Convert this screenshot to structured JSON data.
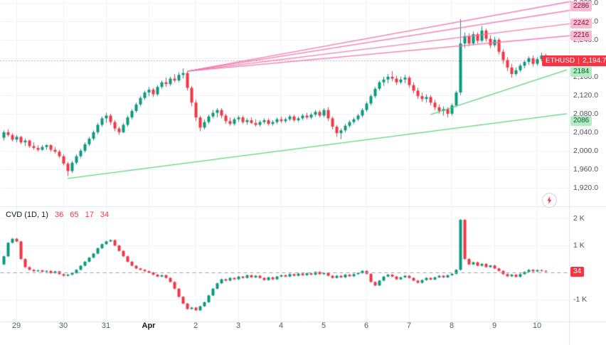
{
  "symbol_badge": {
    "symbol": "ETHUSD",
    "price": "2,194.7"
  },
  "cvd_legend": {
    "title": "CVD (1D, 1)",
    "values": [
      "36",
      "65",
      "17",
      "34"
    ]
  },
  "colors": {
    "up": "#089981",
    "down": "#f23645",
    "grid": "#eef1f6",
    "separator": "#e0e3eb",
    "pink_line": "#f272a8",
    "green_line": "#4fd070",
    "axis_text": "#50535e",
    "zero_line": "#9aa0ab",
    "price_line": "#f23645"
  },
  "chart_data": {
    "type": "candlestick",
    "title": "ETHUSD price with CVD (Cumulative Volume Delta) lower pane",
    "x_ticks": [
      {
        "label": "29",
        "i": 3
      },
      {
        "label": "30",
        "i": 14
      },
      {
        "label": "31",
        "i": 24
      },
      {
        "label": "Apr",
        "i": 34,
        "emph": true
      },
      {
        "label": "2",
        "i": 45
      },
      {
        "label": "3",
        "i": 55
      },
      {
        "label": "4",
        "i": 65
      },
      {
        "label": "5",
        "i": 75
      },
      {
        "label": "6",
        "i": 85
      },
      {
        "label": "7",
        "i": 95
      },
      {
        "label": "8",
        "i": 105
      },
      {
        "label": "9",
        "i": 115
      },
      {
        "label": "10",
        "i": 125
      }
    ],
    "price_pane": {
      "ylim": [
        1889,
        2326
      ],
      "grid_step": 40,
      "current_price": 2194.7,
      "y_ticks": [
        {
          "price": 2320,
          "label": "2,320.0"
        },
        {
          "price": 2280,
          "label": "2,280.0"
        },
        {
          "price": 2240,
          "label": "2,240.0"
        },
        {
          "price": 2160,
          "label": "2,160.0"
        },
        {
          "price": 2120,
          "label": "2,120.0"
        },
        {
          "price": 2080,
          "label": "2,080.0"
        },
        {
          "price": 2040,
          "label": "2,040.0"
        },
        {
          "price": 2000,
          "label": "2,000.0"
        },
        {
          "price": 1960,
          "label": "1,960.0"
        },
        {
          "price": 1920,
          "label": "1,920.0"
        }
      ],
      "candles": [
        [
          2028,
          2044,
          2022,
          2040
        ],
        [
          2040,
          2046,
          2030,
          2034
        ],
        [
          2034,
          2038,
          2020,
          2024
        ],
        [
          2024,
          2034,
          2018,
          2030
        ],
        [
          2030,
          2032,
          2014,
          2018
        ],
        [
          2018,
          2026,
          2010,
          2022
        ],
        [
          2022,
          2024,
          2006,
          2010
        ],
        [
          2010,
          2018,
          2002,
          2006
        ],
        [
          2006,
          2012,
          1998,
          2002
        ],
        [
          2002,
          2012,
          2000,
          2008
        ],
        [
          2008,
          2014,
          2002,
          2012
        ],
        [
          2012,
          2014,
          1998,
          2002
        ],
        [
          2002,
          2008,
          1994,
          1998
        ],
        [
          1998,
          2002,
          1984,
          1988
        ],
        [
          1988,
          1992,
          1968,
          1972
        ],
        [
          1972,
          1976,
          1945,
          1956
        ],
        [
          1956,
          1978,
          1952,
          1974
        ],
        [
          1974,
          1992,
          1970,
          1988
        ],
        [
          1988,
          2004,
          1984,
          2000
        ],
        [
          2000,
          2018,
          1996,
          2014
        ],
        [
          2014,
          2030,
          2010,
          2026
        ],
        [
          2026,
          2044,
          2022,
          2040
        ],
        [
          2040,
          2060,
          2036,
          2056
        ],
        [
          2056,
          2074,
          2052,
          2070
        ],
        [
          2070,
          2082,
          2060,
          2076
        ],
        [
          2076,
          2080,
          2056,
          2062
        ],
        [
          2062,
          2066,
          2042,
          2048
        ],
        [
          2048,
          2052,
          2034,
          2040
        ],
        [
          2040,
          2060,
          2038,
          2056
        ],
        [
          2056,
          2076,
          2052,
          2072
        ],
        [
          2072,
          2090,
          2068,
          2086
        ],
        [
          2086,
          2104,
          2082,
          2100
        ],
        [
          2100,
          2118,
          2096,
          2114
        ],
        [
          2114,
          2130,
          2110,
          2126
        ],
        [
          2126,
          2138,
          2118,
          2132
        ],
        [
          2132,
          2136,
          2116,
          2122
        ],
        [
          2122,
          2142,
          2118,
          2138
        ],
        [
          2138,
          2152,
          2134,
          2148
        ],
        [
          2148,
          2158,
          2138,
          2144
        ],
        [
          2144,
          2160,
          2140,
          2156
        ],
        [
          2156,
          2166,
          2148,
          2152
        ],
        [
          2152,
          2170,
          2148,
          2164
        ],
        [
          2164,
          2178,
          2156,
          2168
        ],
        [
          2168,
          2172,
          2130,
          2136
        ],
        [
          2136,
          2140,
          2096,
          2104
        ],
        [
          2104,
          2110,
          2064,
          2072
        ],
        [
          2072,
          2076,
          2042,
          2050
        ],
        [
          2050,
          2068,
          2046,
          2062
        ],
        [
          2062,
          2078,
          2058,
          2074
        ],
        [
          2074,
          2088,
          2070,
          2082
        ],
        [
          2082,
          2092,
          2072,
          2088
        ],
        [
          2088,
          2092,
          2070,
          2076
        ],
        [
          2076,
          2080,
          2058,
          2064
        ],
        [
          2064,
          2072,
          2054,
          2058
        ],
        [
          2058,
          2072,
          2054,
          2068
        ],
        [
          2068,
          2076,
          2062,
          2072
        ],
        [
          2072,
          2076,
          2058,
          2062
        ],
        [
          2062,
          2070,
          2056,
          2066
        ],
        [
          2066,
          2072,
          2058,
          2060
        ],
        [
          2060,
          2068,
          2052,
          2056
        ],
        [
          2056,
          2066,
          2052,
          2062
        ],
        [
          2062,
          2070,
          2058,
          2066
        ],
        [
          2066,
          2070,
          2054,
          2058
        ],
        [
          2058,
          2066,
          2054,
          2062
        ],
        [
          2062,
          2072,
          2058,
          2068
        ],
        [
          2068,
          2074,
          2060,
          2064
        ],
        [
          2064,
          2072,
          2060,
          2068
        ],
        [
          2068,
          2078,
          2064,
          2074
        ],
        [
          2074,
          2078,
          2062,
          2066
        ],
        [
          2066,
          2074,
          2062,
          2070
        ],
        [
          2070,
          2080,
          2066,
          2076
        ],
        [
          2076,
          2082,
          2068,
          2072
        ],
        [
          2072,
          2082,
          2068,
          2078
        ],
        [
          2078,
          2088,
          2074,
          2084
        ],
        [
          2084,
          2088,
          2072,
          2076
        ],
        [
          2076,
          2092,
          2072,
          2088
        ],
        [
          2088,
          2094,
          2064,
          2070
        ],
        [
          2070,
          2074,
          2046,
          2052
        ],
        [
          2052,
          2056,
          2030,
          2038
        ],
        [
          2038,
          2048,
          2025,
          2044
        ],
        [
          2044,
          2058,
          2040,
          2054
        ],
        [
          2054,
          2066,
          2050,
          2062
        ],
        [
          2062,
          2072,
          2058,
          2068
        ],
        [
          2068,
          2080,
          2064,
          2076
        ],
        [
          2076,
          2092,
          2072,
          2088
        ],
        [
          2088,
          2106,
          2084,
          2102
        ],
        [
          2102,
          2122,
          2098,
          2118
        ],
        [
          2118,
          2138,
          2114,
          2134
        ],
        [
          2134,
          2152,
          2130,
          2148
        ],
        [
          2148,
          2160,
          2140,
          2154
        ],
        [
          2154,
          2166,
          2146,
          2160
        ],
        [
          2160,
          2172,
          2150,
          2156
        ],
        [
          2156,
          2162,
          2142,
          2148
        ],
        [
          2148,
          2160,
          2144,
          2154
        ],
        [
          2154,
          2164,
          2146,
          2158
        ],
        [
          2158,
          2162,
          2136,
          2142
        ],
        [
          2142,
          2148,
          2124,
          2130
        ],
        [
          2130,
          2136,
          2112,
          2118
        ],
        [
          2118,
          2126,
          2106,
          2112
        ],
        [
          2112,
          2122,
          2104,
          2116
        ],
        [
          2116,
          2120,
          2098,
          2104
        ],
        [
          2104,
          2110,
          2088,
          2094
        ],
        [
          2094,
          2100,
          2080,
          2086
        ],
        [
          2086,
          2096,
          2076,
          2090
        ],
        [
          2090,
          2094,
          2072,
          2080
        ],
        [
          2080,
          2102,
          2076,
          2098
        ],
        [
          2098,
          2130,
          2094,
          2126
        ],
        [
          2126,
          2285,
          2120,
          2232
        ],
        [
          2232,
          2256,
          2222,
          2248
        ],
        [
          2248,
          2254,
          2226,
          2232
        ],
        [
          2232,
          2258,
          2228,
          2252
        ],
        [
          2252,
          2256,
          2232,
          2238
        ],
        [
          2238,
          2270,
          2234,
          2260
        ],
        [
          2260,
          2264,
          2236,
          2242
        ],
        [
          2242,
          2250,
          2222,
          2228
        ],
        [
          2228,
          2246,
          2224,
          2240
        ],
        [
          2240,
          2244,
          2208,
          2214
        ],
        [
          2214,
          2220,
          2188,
          2196
        ],
        [
          2196,
          2202,
          2172,
          2180
        ],
        [
          2180,
          2188,
          2158,
          2166
        ],
        [
          2166,
          2180,
          2162,
          2174
        ],
        [
          2174,
          2188,
          2170,
          2184
        ],
        [
          2184,
          2196,
          2178,
          2192
        ],
        [
          2192,
          2204,
          2186,
          2200
        ],
        [
          2200,
          2206,
          2182,
          2188
        ],
        [
          2188,
          2202,
          2184,
          2198
        ],
        [
          2198,
          2212,
          2194,
          2206
        ],
        [
          2206,
          2210,
          2188,
          2195
        ]
      ],
      "drawings": [
        {
          "kind": "trendline",
          "color": "green",
          "x1": 15,
          "p1": 1940,
          "x2": 132,
          "p2": 2080
        },
        {
          "kind": "trendline",
          "color": "green",
          "x1": 100,
          "p1": 2078,
          "x2": 132,
          "p2": 2175
        },
        {
          "kind": "trendline",
          "color": "pink",
          "x1": 43,
          "p1": 2172,
          "x2": 133,
          "p2": 2323
        },
        {
          "kind": "trendline",
          "color": "pink",
          "x1": 43,
          "p1": 2172,
          "x2": 133,
          "p2": 2304
        },
        {
          "kind": "trendline",
          "color": "pink",
          "x1": 43,
          "p1": 2172,
          "x2": 133,
          "p2": 2275
        },
        {
          "kind": "trendline",
          "color": "pink",
          "x1": 43,
          "p1": 2172,
          "x2": 133,
          "p2": 2249
        }
      ],
      "axis_labels": [
        {
          "text": "2286",
          "kind": "pink",
          "y": 9
        },
        {
          "text": "2242",
          "kind": "pink",
          "y": 33
        },
        {
          "text": "2216",
          "kind": "pink",
          "y": 50
        },
        {
          "text": "2184",
          "kind": "green",
          "y": 101
        },
        {
          "text": "2086",
          "kind": "green",
          "y": 170
        }
      ]
    },
    "cvd_pane": {
      "ylim": [
        -1710,
        2320
      ],
      "y_ticks": [
        {
          "value": 2000,
          "label": "2 K"
        },
        {
          "value": 1000,
          "label": "1 K"
        },
        {
          "value": -1000,
          "label": "-1 K"
        }
      ],
      "zero_line": 0,
      "first_open": 300,
      "closes": [
        600,
        1100,
        1250,
        1150,
        500,
        200,
        100,
        50,
        80,
        30,
        60,
        -20,
        40,
        -60,
        -120,
        -80,
        -20,
        100,
        250,
        400,
        550,
        700,
        900,
        1050,
        1150,
        1200,
        1000,
        800,
        600,
        400,
        250,
        150,
        100,
        50,
        0,
        -80,
        -150,
        -100,
        -200,
        -350,
        -600,
        -900,
        -1150,
        -1350,
        -1300,
        -1400,
        -1250,
        -1100,
        -850,
        -600,
        -400,
        -250,
        -300,
        -200,
        -250,
        -150,
        -200,
        -100,
        -180,
        -120,
        -200,
        -280,
        -180,
        -250,
        -150,
        -100,
        -150,
        -60,
        -120,
        -40,
        -100,
        -30,
        -80,
        20,
        -60,
        -20,
        -120,
        -200,
        -120,
        -180,
        -80,
        -140,
        -60,
        -20,
        60,
        -50,
        -350,
        -480,
        -300,
        -150,
        -80,
        -150,
        -250,
        -180,
        -120,
        -200,
        -300,
        -380,
        -280,
        -200,
        -260,
        -180,
        -120,
        -180,
        -100,
        -50,
        100,
        1950,
        500,
        300,
        380,
        250,
        320,
        200,
        260,
        150,
        60,
        -60,
        -140,
        -80,
        -160,
        -60,
        20,
        100,
        40,
        90,
        60,
        34
      ],
      "badge": {
        "text": "34",
        "kind": "red",
        "value": 34
      }
    }
  }
}
